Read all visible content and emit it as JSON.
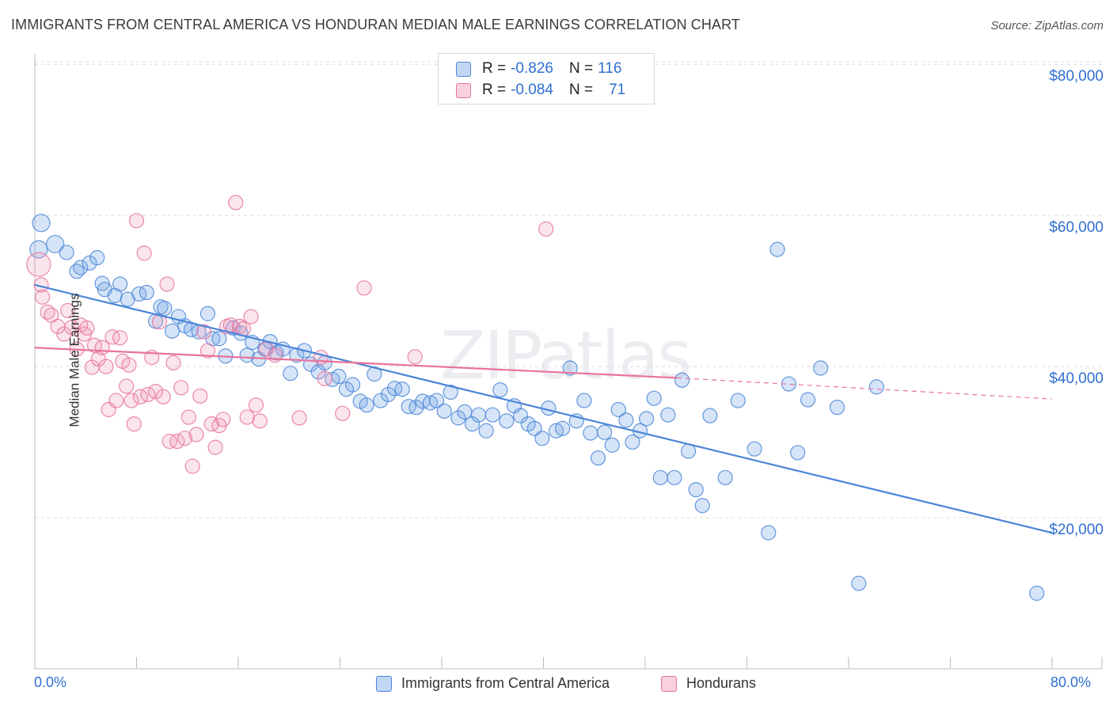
{
  "title": "IMMIGRANTS FROM CENTRAL AMERICA VS HONDURAN MEDIAN MALE EARNINGS CORRELATION CHART",
  "source": "Source: ZipAtlas.com",
  "watermark": "ZIPatlas",
  "colors": {
    "blue": "#4a86d8",
    "blue_fill": "rgba(120,165,230,0.30)",
    "pink": "#e8739c",
    "pink_fill": "rgba(240,150,185,0.25)",
    "grid": "#dcdcdc",
    "tick_label": "#2f6fd0"
  },
  "legend": {
    "rows": [
      {
        "r_label": "R =",
        "r_value": "-0.826",
        "n_label": "N =",
        "n_value": "116"
      },
      {
        "r_label": "R =",
        "r_value": "-0.084",
        "n_label": "N =",
        "n_value": "71"
      }
    ]
  },
  "bottom_legend": {
    "series1": "Immigrants from Central America",
    "series2": "Hondurans"
  },
  "axis": {
    "ylabel": "Median Male Earnings",
    "x_min_label": "0.0%",
    "x_max_label": "80.0%",
    "y_ticks": [
      "$80,000",
      "$60,000",
      "$40,000",
      "$20,000"
    ]
  },
  "chart_data": {
    "type": "scatter",
    "xlabel": "",
    "ylabel": "Median Male Earnings",
    "xlim": [
      0,
      80
    ],
    "ylim": [
      0,
      84000
    ],
    "y_ticks": [
      20000,
      40000,
      60000,
      80000
    ],
    "x_tick_count": 11,
    "grid": true,
    "series": [
      {
        "name": "Immigrants from Central America",
        "color": "#4a86d8",
        "trend": {
          "x": [
            0,
            80
          ],
          "y": [
            50800,
            18000
          ]
        },
        "points": [
          [
            0.5,
            59000
          ],
          [
            0.3,
            55500
          ],
          [
            1.6,
            56200
          ],
          [
            2.5,
            55100
          ],
          [
            3.3,
            52600
          ],
          [
            3.6,
            53100
          ],
          [
            4.3,
            53700
          ],
          [
            4.9,
            54400
          ],
          [
            5.3,
            51000
          ],
          [
            5.5,
            50200
          ],
          [
            6.3,
            49400
          ],
          [
            6.7,
            50900
          ],
          [
            7.3,
            48900
          ],
          [
            8.2,
            49600
          ],
          [
            8.8,
            49800
          ],
          [
            9.5,
            46000
          ],
          [
            9.9,
            47900
          ],
          [
            10.2,
            47700
          ],
          [
            10.8,
            44700
          ],
          [
            11.3,
            46600
          ],
          [
            11.8,
            45400
          ],
          [
            12.3,
            44900
          ],
          [
            12.9,
            44600
          ],
          [
            13.6,
            47000
          ],
          [
            14.0,
            43700
          ],
          [
            14.5,
            43700
          ],
          [
            15.0,
            41400
          ],
          [
            15.6,
            45100
          ],
          [
            16.2,
            44400
          ],
          [
            16.7,
            41500
          ],
          [
            17.1,
            43200
          ],
          [
            17.6,
            41000
          ],
          [
            18.1,
            42300
          ],
          [
            18.5,
            43300
          ],
          [
            19.0,
            41800
          ],
          [
            19.5,
            42300
          ],
          [
            20.1,
            39100
          ],
          [
            20.6,
            41500
          ],
          [
            21.2,
            42100
          ],
          [
            21.7,
            40300
          ],
          [
            22.3,
            39300
          ],
          [
            22.8,
            40500
          ],
          [
            23.4,
            38300
          ],
          [
            23.9,
            38700
          ],
          [
            24.5,
            37000
          ],
          [
            25.0,
            37600
          ],
          [
            25.6,
            35400
          ],
          [
            26.1,
            34900
          ],
          [
            26.7,
            39000
          ],
          [
            27.2,
            35500
          ],
          [
            27.8,
            36300
          ],
          [
            28.3,
            37100
          ],
          [
            28.9,
            37000
          ],
          [
            29.4,
            34700
          ],
          [
            30.0,
            34600
          ],
          [
            30.5,
            35400
          ],
          [
            31.1,
            35200
          ],
          [
            31.6,
            35500
          ],
          [
            32.2,
            34100
          ],
          [
            32.7,
            36600
          ],
          [
            33.3,
            33200
          ],
          [
            33.8,
            34000
          ],
          [
            34.4,
            32400
          ],
          [
            34.9,
            33600
          ],
          [
            35.5,
            31500
          ],
          [
            36.0,
            33600
          ],
          [
            36.6,
            36900
          ],
          [
            37.1,
            32800
          ],
          [
            37.7,
            34800
          ],
          [
            38.2,
            33500
          ],
          [
            38.8,
            32400
          ],
          [
            39.3,
            31800
          ],
          [
            39.9,
            30500
          ],
          [
            40.4,
            34500
          ],
          [
            41.0,
            31500
          ],
          [
            41.5,
            31800
          ],
          [
            42.1,
            39800
          ],
          [
            42.6,
            32800
          ],
          [
            43.2,
            35500
          ],
          [
            43.7,
            31200
          ],
          [
            44.3,
            27900
          ],
          [
            44.8,
            31300
          ],
          [
            45.4,
            29600
          ],
          [
            45.9,
            34300
          ],
          [
            46.5,
            32900
          ],
          [
            47.0,
            30000
          ],
          [
            47.6,
            31500
          ],
          [
            48.1,
            33100
          ],
          [
            48.7,
            35800
          ],
          [
            49.2,
            25300
          ],
          [
            49.8,
            33600
          ],
          [
            50.3,
            25300
          ],
          [
            50.9,
            38200
          ],
          [
            51.4,
            28800
          ],
          [
            52.0,
            23700
          ],
          [
            52.5,
            21600
          ],
          [
            53.1,
            33500
          ],
          [
            54.3,
            25300
          ],
          [
            55.3,
            35500
          ],
          [
            56.6,
            29100
          ],
          [
            57.7,
            18000
          ],
          [
            58.4,
            55500
          ],
          [
            59.3,
            37700
          ],
          [
            60.0,
            28600
          ],
          [
            60.8,
            35600
          ],
          [
            61.8,
            39800
          ],
          [
            63.1,
            34600
          ],
          [
            64.8,
            11300
          ],
          [
            66.2,
            37300
          ],
          [
            78.8,
            10000
          ]
        ]
      },
      {
        "name": "Hondurans",
        "color": "#e8739c",
        "trend": {
          "x": [
            0,
            50.5
          ],
          "y": [
            42500,
            38500
          ]
        },
        "trend_dashed": {
          "x": [
            50.5,
            80
          ],
          "y": [
            38500,
            35700
          ]
        },
        "points": [
          [
            0.3,
            53500
          ],
          [
            0.5,
            50800
          ],
          [
            0.6,
            49200
          ],
          [
            1.0,
            47200
          ],
          [
            1.3,
            46800
          ],
          [
            1.8,
            45300
          ],
          [
            2.3,
            44300
          ],
          [
            2.6,
            47400
          ],
          [
            2.9,
            45200
          ],
          [
            3.3,
            42300
          ],
          [
            3.6,
            45500
          ],
          [
            3.9,
            44300
          ],
          [
            4.1,
            45100
          ],
          [
            4.5,
            39900
          ],
          [
            4.7,
            42800
          ],
          [
            5.0,
            41000
          ],
          [
            5.3,
            42500
          ],
          [
            5.6,
            40000
          ],
          [
            5.8,
            34300
          ],
          [
            6.1,
            43900
          ],
          [
            6.4,
            35500
          ],
          [
            6.7,
            43800
          ],
          [
            6.9,
            40700
          ],
          [
            7.2,
            37400
          ],
          [
            7.4,
            40200
          ],
          [
            7.6,
            35500
          ],
          [
            7.8,
            32400
          ],
          [
            8.0,
            59300
          ],
          [
            8.3,
            36000
          ],
          [
            8.6,
            55000
          ],
          [
            8.9,
            36300
          ],
          [
            9.2,
            41200
          ],
          [
            9.5,
            36700
          ],
          [
            9.8,
            45900
          ],
          [
            10.1,
            36000
          ],
          [
            10.4,
            50900
          ],
          [
            10.6,
            30100
          ],
          [
            10.9,
            40500
          ],
          [
            11.2,
            30100
          ],
          [
            11.5,
            37200
          ],
          [
            11.8,
            30500
          ],
          [
            12.1,
            33300
          ],
          [
            12.4,
            26800
          ],
          [
            12.7,
            31000
          ],
          [
            13.0,
            36100
          ],
          [
            13.3,
            44600
          ],
          [
            13.6,
            42100
          ],
          [
            13.9,
            32400
          ],
          [
            14.2,
            29300
          ],
          [
            14.5,
            32200
          ],
          [
            14.8,
            33000
          ],
          [
            15.1,
            45300
          ],
          [
            15.4,
            45500
          ],
          [
            15.8,
            61700
          ],
          [
            16.1,
            45300
          ],
          [
            16.4,
            45000
          ],
          [
            16.7,
            33300
          ],
          [
            17.0,
            46600
          ],
          [
            17.4,
            34900
          ],
          [
            17.7,
            32800
          ],
          [
            18.2,
            42300
          ],
          [
            18.9,
            41500
          ],
          [
            20.8,
            33200
          ],
          [
            22.5,
            41200
          ],
          [
            22.8,
            38400
          ],
          [
            24.2,
            33800
          ],
          [
            25.9,
            50400
          ],
          [
            29.9,
            41300
          ],
          [
            40.2,
            58200
          ]
        ]
      }
    ]
  }
}
